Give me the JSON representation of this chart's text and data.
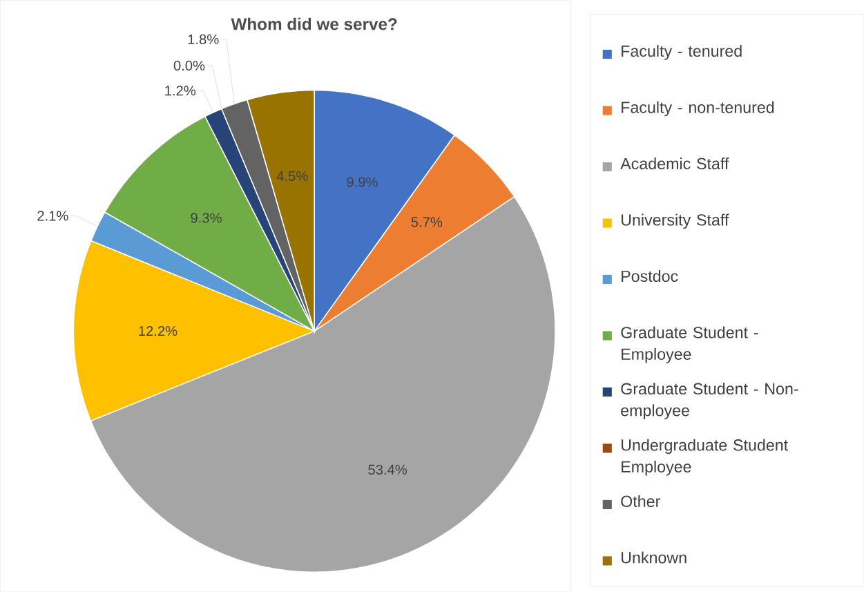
{
  "chart_data": {
    "type": "pie",
    "title": "Whom did we serve?",
    "categories": [
      "Faculty - tenured",
      "Faculty - non-tenured",
      "Academic Staff",
      "University Staff",
      "Postdoc",
      "Graduate Student - Employee",
      "Graduate Student - Non-employee",
      "Undergraduate Student Employee",
      "Other",
      "Unknown"
    ],
    "values": [
      9.9,
      5.7,
      53.4,
      12.2,
      2.1,
      9.3,
      1.2,
      0.0,
      1.8,
      4.5
    ],
    "value_labels": [
      "9.9%",
      "5.7%",
      "53.4%",
      "12.2%",
      "2.1%",
      "9.3%",
      "1.2%",
      "0.0%",
      "1.8%",
      "4.5%"
    ],
    "colors": [
      "#4472c4",
      "#ed7d31",
      "#a5a5a5",
      "#ffc000",
      "#5b9bd5",
      "#70ad47",
      "#264478",
      "#9e480e",
      "#636363",
      "#997300"
    ],
    "legend": "right"
  }
}
